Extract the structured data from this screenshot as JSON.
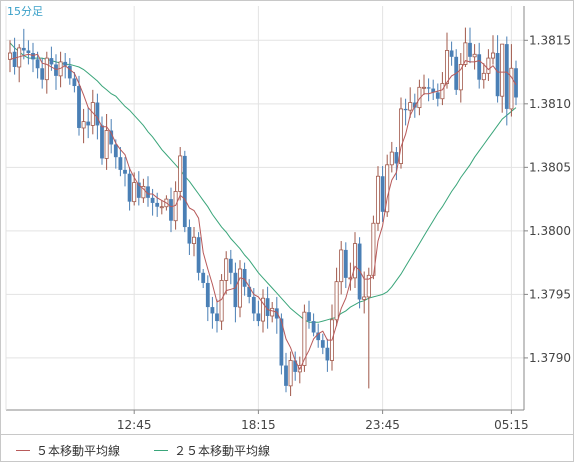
{
  "chart_data": {
    "type": "candlestick",
    "interval_label": "15分足",
    "y_ticks": [
      "1.3815",
      "1.3810",
      "1.3805",
      "1.3800",
      "1.3795",
      "1.3790"
    ],
    "x_ticks": [
      "12:45",
      "18:15",
      "23:45",
      "05:15"
    ],
    "ylim": [
      1.37859,
      1.38177
    ],
    "legend": [
      {
        "label": "５本移動平均線",
        "color": "#b85a5a"
      },
      {
        "label": "２５本移動平均線",
        "color": "#3aa57a"
      }
    ],
    "colors": {
      "up": "#a0584a",
      "down": "#4a7fb5",
      "grid": "#e3e3e3",
      "axis": "#888888",
      "label": "#444444",
      "interval": "#3aa0c8"
    },
    "open": [
      1.38135,
      1.38141,
      1.38129,
      1.38144,
      1.38142,
      1.3814,
      1.38135,
      1.38128,
      1.38119,
      1.38136,
      1.38131,
      1.38122,
      1.38133,
      1.3813,
      1.3812,
      1.38114,
      1.38081,
      1.38086,
      1.38083,
      1.38101,
      1.38083,
      1.38057,
      1.38079,
      1.38068,
      1.38058,
      1.38048,
      1.38045,
      1.38023,
      1.38038,
      1.38026,
      1.38035,
      1.38026,
      1.38022,
      1.38019,
      1.38019,
      1.38025,
      1.38008,
      1.38031,
      1.38059,
      1.38003,
      1.3799,
      1.37995,
      1.37967,
      1.37959,
      1.3794,
      1.37935,
      1.37929,
      1.37961,
      1.37978,
      1.37967,
      1.3794,
      1.3797,
      1.37956,
      1.37948,
      1.37935,
      1.37929,
      1.37947,
      1.37933,
      1.37939,
      1.37931,
      1.37894,
      1.37878,
      1.37898,
      1.37889,
      1.37894,
      1.37936,
      1.37929,
      1.3792,
      1.37914,
      1.37908,
      1.37898,
      1.3793,
      1.3796,
      1.37985,
      1.37963,
      1.37963,
      1.3799,
      1.37946,
      1.37948,
      1.37965,
      1.38006,
      1.38043,
      1.38015,
      1.38052,
      1.38062,
      1.38053,
      1.38096,
      1.38095,
      1.38101,
      1.38097,
      1.38113,
      1.38113,
      1.38112,
      1.38109,
      1.38104,
      1.38116,
      1.38142,
      1.38137,
      1.38111,
      1.38131,
      1.38148,
      1.38137,
      1.38139,
      1.38119,
      1.38124,
      1.38136,
      1.3814,
      1.38106,
      1.38147,
      1.38096,
      1.38128
    ],
    "close": [
      1.3814,
      1.38129,
      1.38144,
      1.38142,
      1.3814,
      1.38135,
      1.38128,
      1.38119,
      1.38136,
      1.38131,
      1.38122,
      1.38133,
      1.3813,
      1.3812,
      1.38114,
      1.38081,
      1.38086,
      1.38083,
      1.38101,
      1.38083,
      1.38057,
      1.38079,
      1.38068,
      1.38058,
      1.38048,
      1.38045,
      1.38023,
      1.38038,
      1.38026,
      1.38035,
      1.38026,
      1.38022,
      1.38019,
      1.38019,
      1.38025,
      1.38008,
      1.38031,
      1.38059,
      1.38003,
      1.3799,
      1.37995,
      1.37967,
      1.37959,
      1.3794,
      1.37935,
      1.37929,
      1.37961,
      1.37978,
      1.37967,
      1.3794,
      1.3797,
      1.37956,
      1.37948,
      1.37935,
      1.37929,
      1.37947,
      1.37933,
      1.37939,
      1.37931,
      1.37894,
      1.37878,
      1.37898,
      1.37889,
      1.37894,
      1.37936,
      1.37929,
      1.3792,
      1.37914,
      1.37908,
      1.37898,
      1.3793,
      1.3796,
      1.37985,
      1.37963,
      1.37963,
      1.3799,
      1.37946,
      1.37948,
      1.37965,
      1.38006,
      1.38043,
      1.38015,
      1.38052,
      1.38062,
      1.38053,
      1.38096,
      1.38095,
      1.38101,
      1.38097,
      1.38113,
      1.38113,
      1.38112,
      1.38109,
      1.38104,
      1.38116,
      1.38142,
      1.38137,
      1.38111,
      1.38131,
      1.38148,
      1.38137,
      1.38139,
      1.38119,
      1.38124,
      1.38136,
      1.3814,
      1.38106,
      1.38147,
      1.38096,
      1.38128,
      1.38105
    ],
    "high": [
      1.3815,
      1.38152,
      1.38147,
      1.38159,
      1.3815,
      1.38148,
      1.38141,
      1.38136,
      1.38141,
      1.38145,
      1.38139,
      1.38141,
      1.3814,
      1.38136,
      1.38125,
      1.38122,
      1.38096,
      1.38097,
      1.38111,
      1.38108,
      1.3809,
      1.38092,
      1.38088,
      1.38072,
      1.38066,
      1.38058,
      1.3805,
      1.38046,
      1.38047,
      1.38041,
      1.38043,
      1.38033,
      1.3803,
      1.38024,
      1.38028,
      1.38034,
      1.38039,
      1.38066,
      1.38063,
      1.38009,
      1.38003,
      1.37999,
      1.3797,
      1.37965,
      1.37948,
      1.37946,
      1.37966,
      1.37984,
      1.37985,
      1.37975,
      1.37977,
      1.37975,
      1.37962,
      1.37955,
      1.37945,
      1.37954,
      1.37956,
      1.37944,
      1.37948,
      1.37935,
      1.37904,
      1.37905,
      1.37905,
      1.37901,
      1.37942,
      1.37945,
      1.37935,
      1.37927,
      1.37919,
      1.37915,
      1.37942,
      1.37971,
      1.37992,
      1.37991,
      1.37975,
      1.37999,
      1.37995,
      1.37968,
      1.37971,
      1.38012,
      1.38051,
      1.38051,
      1.3806,
      1.3807,
      1.38066,
      1.38105,
      1.38104,
      1.38113,
      1.38108,
      1.38119,
      1.38123,
      1.3812,
      1.38119,
      1.38116,
      1.38125,
      1.38156,
      1.38149,
      1.38143,
      1.3814,
      1.3816,
      1.3816,
      1.38147,
      1.38148,
      1.38132,
      1.38143,
      1.38154,
      1.38154,
      1.38147,
      1.38153,
      1.38147,
      1.38134
    ],
    "low": [
      1.38125,
      1.38123,
      1.38117,
      1.38135,
      1.38131,
      1.38125,
      1.3812,
      1.38112,
      1.38108,
      1.38126,
      1.38111,
      1.38113,
      1.3812,
      1.38115,
      1.38109,
      1.38075,
      1.38069,
      1.38073,
      1.38076,
      1.38072,
      1.38052,
      1.38048,
      1.38061,
      1.38049,
      1.38043,
      1.38035,
      1.38016,
      1.3802,
      1.3802,
      1.38022,
      1.38019,
      1.38012,
      1.38011,
      1.38013,
      1.38016,
      1.37999,
      1.38001,
      1.38024,
      1.37999,
      1.37981,
      1.3798,
      1.37961,
      1.37955,
      1.37929,
      1.37923,
      1.3792,
      1.37922,
      1.3795,
      1.37958,
      1.37928,
      1.37932,
      1.37949,
      1.37943,
      1.37929,
      1.37925,
      1.3792,
      1.37923,
      1.37928,
      1.37919,
      1.37887,
      1.37873,
      1.3787,
      1.37882,
      1.3788,
      1.37889,
      1.37923,
      1.37917,
      1.37908,
      1.37903,
      1.37889,
      1.3789,
      1.37925,
      1.3795,
      1.37955,
      1.37953,
      1.37955,
      1.37939,
      1.37935,
      1.37876,
      1.37962,
      1.38,
      1.38007,
      1.38011,
      1.38046,
      1.3804,
      1.38049,
      1.38083,
      1.38089,
      1.38089,
      1.38091,
      1.38107,
      1.38102,
      1.38103,
      1.38098,
      1.38099,
      1.38112,
      1.3813,
      1.38107,
      1.38101,
      1.38129,
      1.38132,
      1.38127,
      1.38112,
      1.38112,
      1.38118,
      1.38131,
      1.38101,
      1.38093,
      1.38083,
      1.3809,
      1.38099
    ],
    "sma5": [
      1.38135,
      1.38136,
      1.38137,
      1.38138,
      1.38139,
      1.38138,
      1.38139,
      1.38132,
      1.38131,
      1.38129,
      1.38127,
      1.38128,
      1.3813,
      1.38127,
      1.38124,
      1.38116,
      1.38107,
      1.38097,
      1.38093,
      1.38089,
      1.38082,
      1.38082,
      1.38077,
      1.38069,
      1.38064,
      1.3806,
      1.38049,
      1.38042,
      1.38036,
      1.38033,
      1.38029,
      1.38029,
      1.38026,
      1.38024,
      1.38022,
      1.38019,
      1.3802,
      1.38028,
      1.38025,
      1.38018,
      1.38016,
      1.3801,
      1.37983,
      1.3797,
      1.37958,
      1.37944,
      1.37946,
      1.37953,
      1.37954,
      1.37955,
      1.37963,
      1.37962,
      1.37956,
      1.3795,
      1.37948,
      1.37943,
      1.37938,
      1.37937,
      1.37936,
      1.37929,
      1.37915,
      1.37908,
      1.37898,
      1.37891,
      1.37899,
      1.37906,
      1.37915,
      1.37919,
      1.37921,
      1.37914,
      1.37914,
      1.37926,
      1.37939,
      1.37947,
      1.3796,
      1.37972,
      1.37969,
      1.37962,
      1.37962,
      1.37964,
      1.37992,
      1.38004,
      1.38026,
      1.3804,
      1.38046,
      1.38066,
      1.38076,
      1.38091,
      1.38098,
      1.38104,
      1.38108,
      1.38108,
      1.38109,
      1.3811,
      1.38111,
      1.38117,
      1.38122,
      1.38124,
      1.38127,
      1.38134,
      1.38133,
      1.38133,
      1.38134,
      1.38131,
      1.38127,
      1.3813,
      1.38125,
      1.38125,
      1.38125,
      1.38121,
      1.38115
    ],
    "sma25": [
      1.38148,
      1.38144,
      1.38141,
      1.38138,
      1.38136,
      1.38136,
      1.38136,
      1.38136,
      1.38135,
      1.38134,
      1.38133,
      1.38132,
      1.38131,
      1.38131,
      1.3813,
      1.38129,
      1.38127,
      1.38124,
      1.38121,
      1.38118,
      1.38114,
      1.38111,
      1.38108,
      1.38106,
      1.38102,
      1.38098,
      1.38095,
      1.38091,
      1.38087,
      1.38083,
      1.38078,
      1.38074,
      1.38069,
      1.38064,
      1.3806,
      1.38056,
      1.38052,
      1.38048,
      1.38043,
      1.38039,
      1.38034,
      1.38029,
      1.38024,
      1.38019,
      1.38013,
      1.38008,
      1.38003,
      1.37999,
      1.37994,
      1.3799,
      1.37986,
      1.37981,
      1.37977,
      1.37972,
      1.37967,
      1.37963,
      1.37959,
      1.37955,
      1.37951,
      1.37947,
      1.37943,
      1.37939,
      1.37936,
      1.37933,
      1.3793,
      1.37928,
      1.37928,
      1.37928,
      1.37929,
      1.3793,
      1.37931,
      1.37932,
      1.37935,
      1.37937,
      1.3794,
      1.37942,
      1.37944,
      1.37945,
      1.37947,
      1.37948,
      1.37949,
      1.3795,
      1.37952,
      1.37956,
      1.37961,
      1.37966,
      1.37972,
      1.37978,
      1.37984,
      1.3799,
      1.37996,
      1.38002,
      1.38008,
      1.38014,
      1.38019,
      1.38025,
      1.38031,
      1.38036,
      1.38042,
      1.38047,
      1.38052,
      1.38058,
      1.38063,
      1.38068,
      1.38073,
      1.38078,
      1.38083,
      1.38088,
      1.38091,
      1.38094,
      1.38097
    ]
  }
}
